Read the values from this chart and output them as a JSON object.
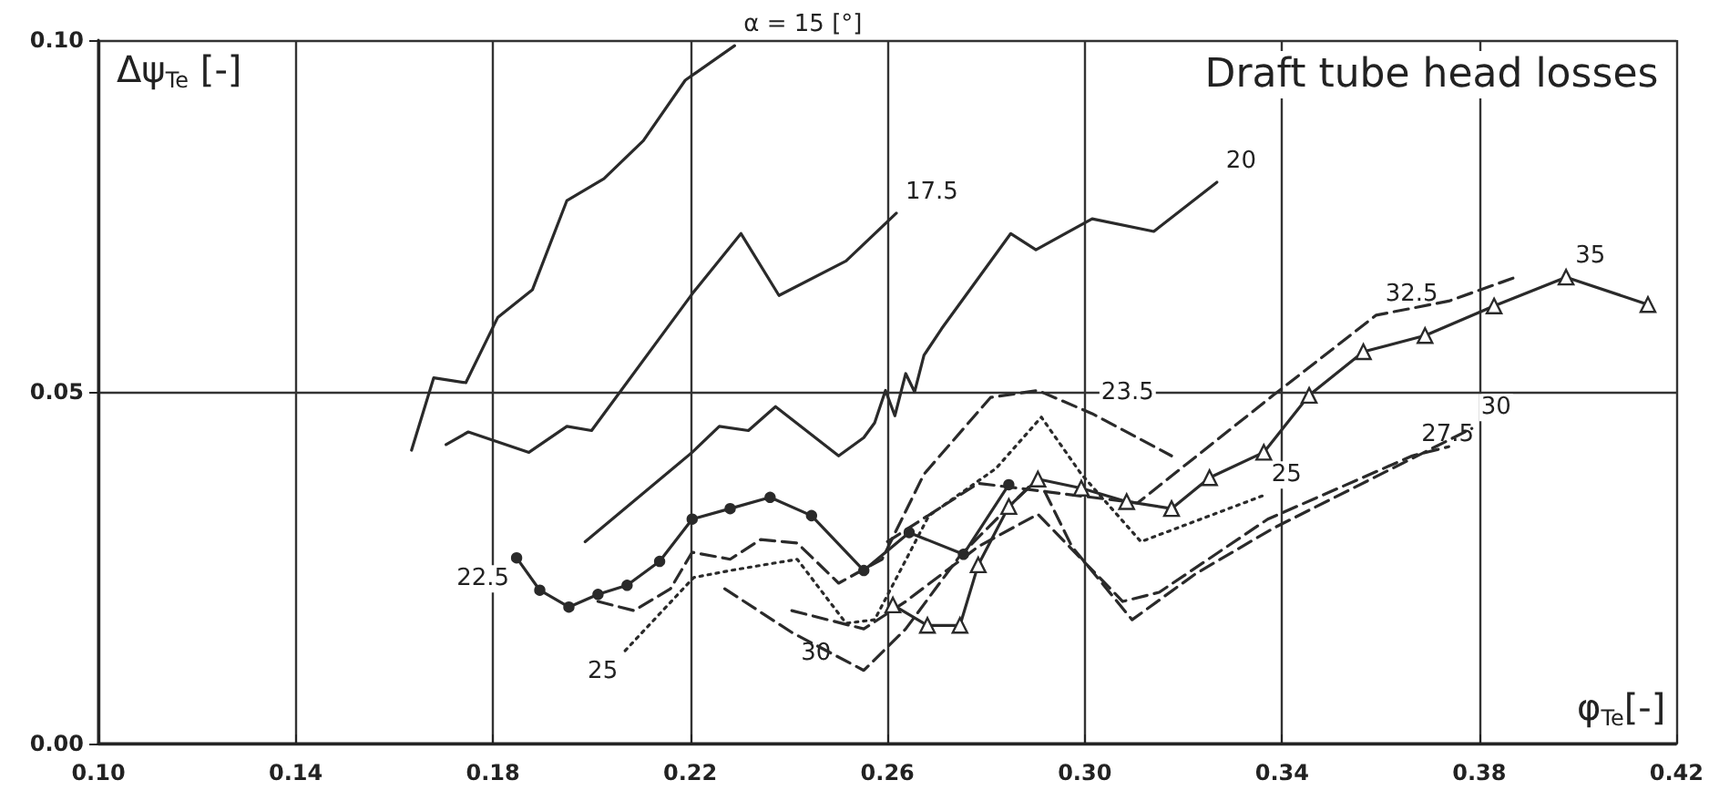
{
  "chart_data": {
    "type": "line",
    "title": "Draft tube head losses",
    "xlabel": "φ$_{Te}$[-]",
    "ylabel": "Δψ$_{Te}$ [-]",
    "xlim": [
      0.1,
      0.42
    ],
    "ylim": [
      0,
      0.1
    ],
    "xticks": [
      {
        "value": 0.1,
        "label": "0.10"
      },
      {
        "value": 0.14,
        "label": "0.14"
      },
      {
        "value": 0.18,
        "label": "0.18"
      },
      {
        "value": 0.22,
        "label": "0.22"
      },
      {
        "value": 0.26,
        "label": "0.26"
      },
      {
        "value": 0.3,
        "label": "0.30"
      },
      {
        "value": 0.34,
        "label": "0.34"
      },
      {
        "value": 0.38,
        "label": "0.38"
      },
      {
        "value": 0.42,
        "label": "0.42"
      }
    ],
    "yticks": [
      {
        "value": 0,
        "label": "0.00"
      },
      {
        "value": 0.05,
        "label": "0.05"
      },
      {
        "value": 0.1,
        "label": "0.10"
      }
    ],
    "grid": true,
    "series": [
      {
        "color": "#2a2a2a",
        "line_style": "solid",
        "marker": "none",
        "x": [
          0.1635,
          0.168,
          0.1745,
          0.181,
          0.188,
          0.195,
          0.2025,
          0.2105,
          0.219,
          0.229
        ],
        "values": [
          0.0417,
          0.052,
          0.0513,
          0.0606,
          0.0645,
          0.0772,
          0.0803,
          0.0857,
          0.0943,
          0.0992
        ]
      },
      {
        "color": "#2a2a2a",
        "line_style": "solid",
        "marker": "none",
        "x": [
          0.1705,
          0.175,
          0.1873,
          0.195,
          0.2,
          0.2207,
          0.2303,
          0.238,
          0.2516,
          0.2618
        ],
        "values": [
          0.0425,
          0.0443,
          0.0414,
          0.0451,
          0.0445,
          0.0642,
          0.0725,
          0.0637,
          0.0686,
          0.0754
        ]
      },
      {
        "color": "#2a2a2a",
        "line_style": "solid",
        "marker": "none",
        "x": [
          0.1987,
          0.2204,
          0.2259,
          0.2318,
          0.2373,
          0.2501,
          0.2552,
          0.2574,
          0.2596,
          0.2615,
          0.2637,
          0.2655,
          0.2674,
          0.271,
          0.285,
          0.2901,
          0.3015,
          0.314,
          0.3268
        ],
        "values": [
          0.0287,
          0.0414,
          0.0451,
          0.0445,
          0.0479,
          0.0409,
          0.0435,
          0.0456,
          0.0502,
          0.0466,
          0.0526,
          0.05,
          0.0552,
          0.059,
          0.0725,
          0.0702,
          0.0746,
          0.0728,
          0.0798
        ]
      },
      {
        "color": "#2a2a2a",
        "line_style": "solid",
        "marker": "circle",
        "x": [
          0.1848,
          0.1895,
          0.1954,
          0.2013,
          0.2072,
          0.2138,
          0.2204,
          0.2281,
          0.2362,
          0.2446,
          0.2552,
          0.2644,
          0.2754,
          0.2846
        ],
        "values": [
          0.0264,
          0.0218,
          0.0194,
          0.0212,
          0.0225,
          0.0259,
          0.0319,
          0.0334,
          0.035,
          0.0324,
          0.0246,
          0.03,
          0.0269,
          0.0368
        ]
      },
      {
        "color": "#2a2a2a",
        "line_style": "dashed",
        "marker": "none",
        "x": [
          0.2013,
          0.2086,
          0.216,
          0.2204,
          0.2281,
          0.2343,
          0.2417,
          0.2501,
          0.2589,
          0.2674,
          0.2809,
          0.2905,
          0.3015,
          0.3176
        ],
        "values": [
          0.0202,
          0.0189,
          0.022,
          0.0272,
          0.0262,
          0.029,
          0.0285,
          0.0228,
          0.0262,
          0.0383,
          0.0492,
          0.0502,
          0.0469,
          0.0409
        ]
      },
      {
        "color": "#2a2a2a",
        "line_style": "dotted",
        "marker": "none",
        "x": [
          0.2068,
          0.2207,
          0.2281,
          0.2417,
          0.2516,
          0.2574,
          0.2684,
          0.282,
          0.2912,
          0.2993,
          0.3114,
          0.336
        ],
        "values": [
          0.0132,
          0.0236,
          0.0246,
          0.0262,
          0.0171,
          0.0176,
          0.0324,
          0.0391,
          0.0464,
          0.0383,
          0.0287,
          0.0352
        ]
      },
      {
        "color": "#2a2a2a",
        "line_style": "dashed",
        "marker": "none",
        "x": [
          0.2406,
          0.2552,
          0.2637,
          0.2784,
          0.2905,
          0.3077,
          0.3151,
          0.3371,
          0.3664,
          0.3738
        ],
        "values": [
          0.0189,
          0.0163,
          0.0202,
          0.028,
          0.0326,
          0.0202,
          0.0215,
          0.0319,
          0.0409,
          0.0422
        ]
      },
      {
        "color": "#2a2a2a",
        "line_style": "dashed",
        "marker": "none",
        "x": [
          0.227,
          0.2406,
          0.2552,
          0.2637,
          0.2747,
          0.2905,
          0.2974,
          0.3096,
          0.3224,
          0.3382,
          0.3785
        ],
        "values": [
          0.022,
          0.0158,
          0.0104,
          0.0163,
          0.0267,
          0.0378,
          0.028,
          0.0176,
          0.0241,
          0.0306,
          0.0448
        ]
      },
      {
        "color": "#2a2a2a",
        "line_style": "dashed",
        "marker": "none",
        "x": [
          0.26,
          0.2784,
          0.3107,
          0.3382,
          0.3591,
          0.3738,
          0.3874
        ],
        "values": [
          0.0287,
          0.037,
          0.0342,
          0.0495,
          0.0609,
          0.0629,
          0.0663
        ]
      },
      {
        "color": "#2a2a2a",
        "line_style": "solid",
        "marker": "triangle",
        "x": [
          0.2611,
          0.2681,
          0.2747,
          0.2784,
          0.2846,
          0.2905,
          0.2993,
          0.3085,
          0.3176,
          0.3253,
          0.3363,
          0.3455,
          0.3565,
          0.369,
          0.383,
          0.3976,
          0.4142
        ],
        "values": [
          0.0197,
          0.0168,
          0.0168,
          0.0254,
          0.0337,
          0.0376,
          0.0363,
          0.0344,
          0.0334,
          0.0378,
          0.0414,
          0.0495,
          0.0557,
          0.058,
          0.0622,
          0.0663,
          0.0624
        ]
      }
    ],
    "annotations": [
      {
        "text": "α = 15 [°]",
        "x": 0.229,
        "y": 0.0992
      },
      {
        "text": "17.5",
        "x": 0.2618,
        "y": 0.0754
      },
      {
        "text": "20",
        "x": 0.3268,
        "y": 0.0798
      },
      {
        "text": "22.5",
        "x": 0.1848,
        "y": 0.0264
      },
      {
        "text": "23.5",
        "x": 0.3015,
        "y": 0.0469
      },
      {
        "text": "25",
        "x": 0.2068,
        "y": 0.0132
      },
      {
        "text": "30",
        "x": 0.2406,
        "y": 0.0158
      },
      {
        "text": "25",
        "x": 0.336,
        "y": 0.0352
      },
      {
        "text": "27.5",
        "x": 0.3664,
        "y": 0.0409
      },
      {
        "text": "30",
        "x": 0.3785,
        "y": 0.0448
      },
      {
        "text": "32.5",
        "x": 0.3591,
        "y": 0.0609
      },
      {
        "text": "35",
        "x": 0.3976,
        "y": 0.0663
      }
    ]
  }
}
